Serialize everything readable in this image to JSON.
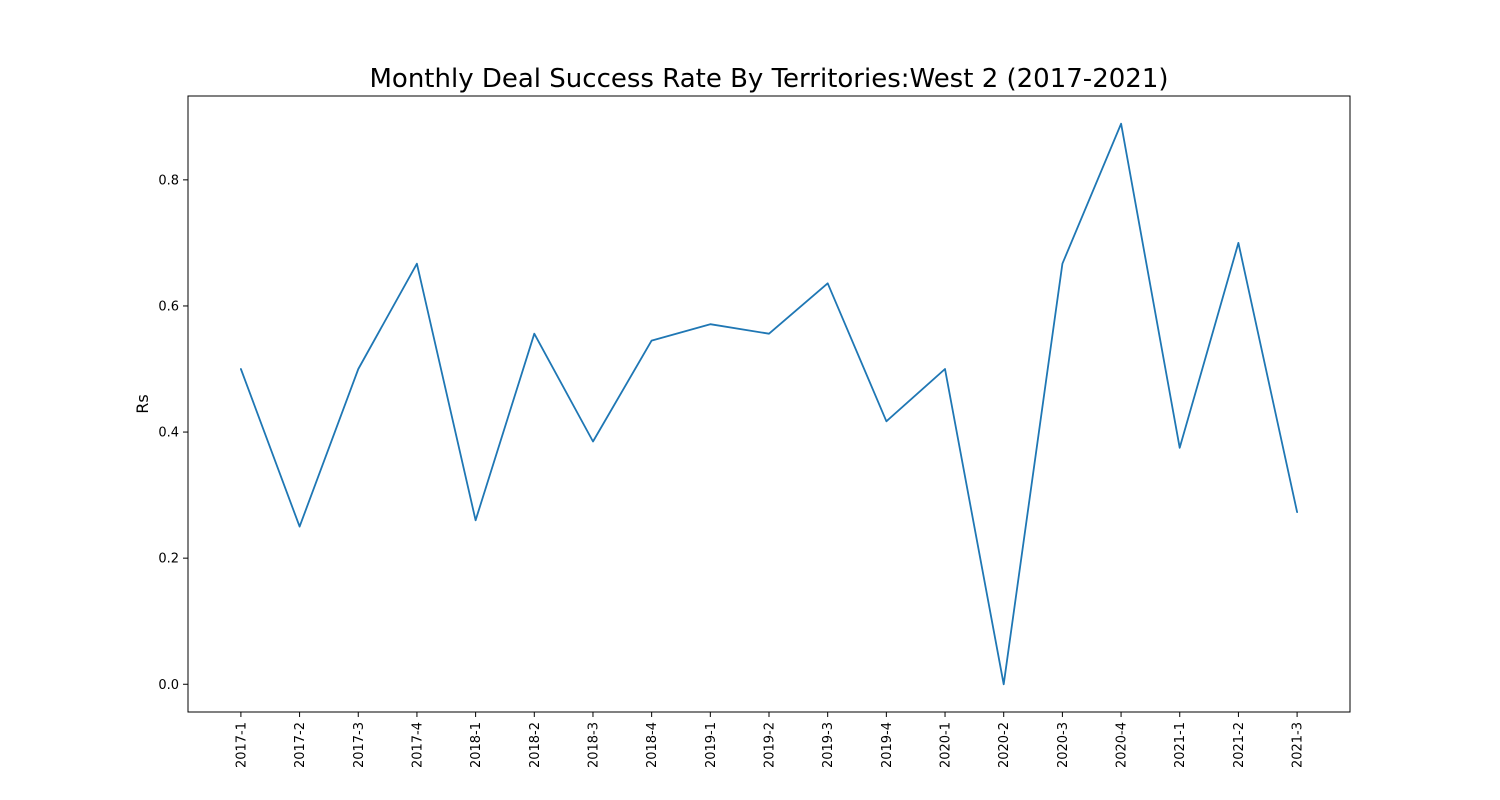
{
  "chart_data": {
    "type": "line",
    "title": "Monthly Deal Success Rate By Territories:West 2 (2017-2021)",
    "xlabel": "",
    "ylabel": "Rs",
    "categories": [
      "2017-1",
      "2017-2",
      "2017-3",
      "2017-4",
      "2018-1",
      "2018-2",
      "2018-3",
      "2018-4",
      "2019-1",
      "2019-2",
      "2019-3",
      "2019-4",
      "2020-1",
      "2020-2",
      "2020-3",
      "2020-4",
      "2021-1",
      "2021-2",
      "2021-3"
    ],
    "series": [
      {
        "color": "#1f77b4",
        "values": [
          0.5,
          0.25,
          0.5,
          0.667,
          0.26,
          0.556,
          0.385,
          0.545,
          0.571,
          0.556,
          0.636,
          0.417,
          0.5,
          0.0,
          0.667,
          0.889,
          0.375,
          0.7,
          0.273
        ]
      }
    ],
    "ylim": [
      -0.044,
      0.933
    ],
    "yticks": [
      0.0,
      0.2,
      0.4,
      0.6,
      0.8
    ],
    "ytick_labels": [
      "0.0",
      "0.2",
      "0.4",
      "0.6",
      "0.8"
    ],
    "grid": false,
    "legend": "none"
  }
}
